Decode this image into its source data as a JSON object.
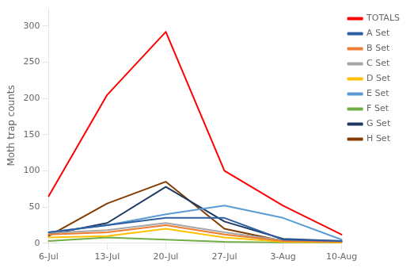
{
  "chart_data": {
    "type": "line",
    "ylabel": "Moth trap counts",
    "categories": [
      "6-Jul",
      "13-Jul",
      "20-Jul",
      "27-Jul",
      "3-Aug",
      "10-Aug"
    ],
    "series": [
      {
        "name": "TOTALS",
        "color": "#ff0000",
        "values": [
          65,
          205,
          292,
          100,
          52,
          12
        ]
      },
      {
        "name": "A Set",
        "color": "#2e5fa3",
        "values": [
          15,
          25,
          35,
          35,
          5,
          3
        ]
      },
      {
        "name": "B Set",
        "color": "#ed7d31",
        "values": [
          12,
          15,
          25,
          12,
          3,
          2
        ]
      },
      {
        "name": "C Set",
        "color": "#a6a6a6",
        "values": [
          14,
          18,
          28,
          15,
          4,
          2
        ]
      },
      {
        "name": "D Set",
        "color": "#ffc000",
        "values": [
          8,
          10,
          20,
          8,
          2,
          1
        ]
      },
      {
        "name": "E Set",
        "color": "#5b9bd5",
        "values": [
          15,
          25,
          40,
          52,
          35,
          5
        ]
      },
      {
        "name": "F Set",
        "color": "#70ad47",
        "values": [
          3,
          8,
          5,
          2,
          1,
          1
        ]
      },
      {
        "name": "G Set",
        "color": "#1f3864",
        "values": [
          12,
          28,
          78,
          30,
          6,
          3
        ]
      },
      {
        "name": "H Set",
        "color": "#833c00",
        "values": [
          10,
          55,
          85,
          20,
          3,
          2
        ]
      }
    ],
    "ylim": [
      0,
      325
    ],
    "yticks": [
      0,
      50,
      100,
      150,
      200,
      250,
      300
    ],
    "grid": false,
    "legend": "right"
  }
}
